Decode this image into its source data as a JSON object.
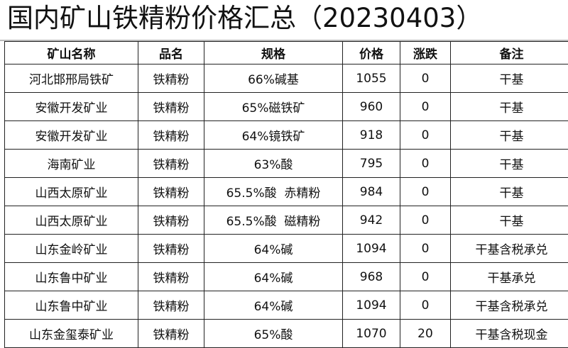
{
  "title": "国内矿山铁精粉价格汇总（20230403）",
  "table": {
    "headers": [
      "矿山名称",
      "品名",
      "规格",
      "价格",
      "涨跌",
      "备注"
    ],
    "rows": [
      [
        "河北邯邢局铁矿",
        "铁精粉",
        "66%碱基",
        "1055",
        "0",
        "干基"
      ],
      [
        "安徽开发矿业",
        "铁精粉",
        "65%磁铁矿",
        "960",
        "0",
        "干基"
      ],
      [
        "安徽开发矿业",
        "铁精粉",
        "64%镜铁矿",
        "918",
        "0",
        "干基"
      ],
      [
        "海南矿业",
        "铁精粉",
        "63%酸",
        "795",
        "0",
        "干基"
      ],
      [
        "山西太原矿业",
        "铁精粉",
        "65.5%酸  赤精粉",
        "984",
        "0",
        "干基"
      ],
      [
        "山西太原矿业",
        "铁精粉",
        "65.5%酸  磁精粉",
        "942",
        "0",
        "干基"
      ],
      [
        "山东金岭矿业",
        "铁精粉",
        "64%碱",
        "1094",
        "0",
        "干基含税承兑"
      ],
      [
        "山东鲁中矿业",
        "铁精粉",
        "64%碱",
        "968",
        "0",
        "干基承兑"
      ],
      [
        "山东鲁中矿业",
        "铁精粉",
        "64%碱",
        "1094",
        "0",
        "干基含税承兑"
      ],
      [
        "山东金玺泰矿业",
        "铁精粉",
        "65%酸",
        "1070",
        "20",
        "干基含税现金"
      ]
    ]
  }
}
